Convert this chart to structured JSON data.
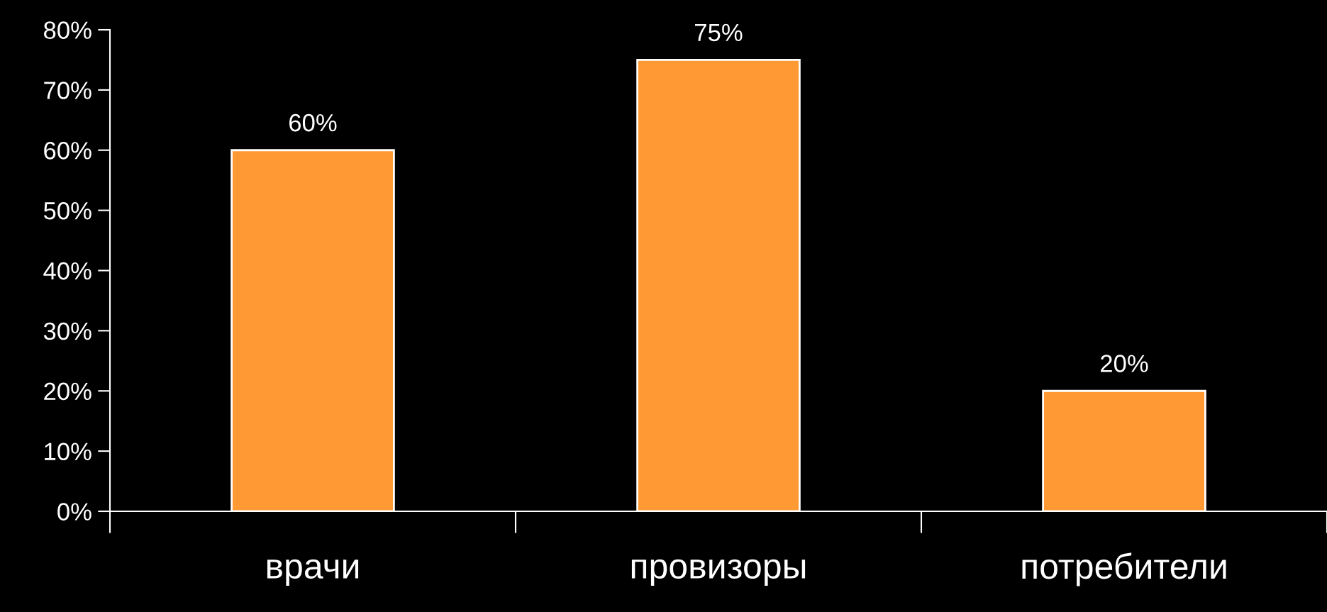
{
  "chart_data": {
    "type": "bar",
    "categories": [
      "врачи",
      "провизоры",
      "потребители"
    ],
    "values": [
      60,
      75,
      20
    ],
    "value_labels": [
      "60%",
      "75%",
      "20%"
    ],
    "color": "#ff9933",
    "ylim": [
      0,
      80
    ],
    "yticks": [
      {
        "value": 0,
        "label": "0%"
      },
      {
        "value": 10,
        "label": "10%"
      },
      {
        "value": 20,
        "label": "20%"
      },
      {
        "value": 30,
        "label": "30%"
      },
      {
        "value": 40,
        "label": "40%"
      },
      {
        "value": 50,
        "label": "50%"
      },
      {
        "value": 60,
        "label": "60%"
      },
      {
        "value": 70,
        "label": "70%"
      },
      {
        "value": 80,
        "label": "80%"
      }
    ],
    "grid": false,
    "legend": false
  }
}
